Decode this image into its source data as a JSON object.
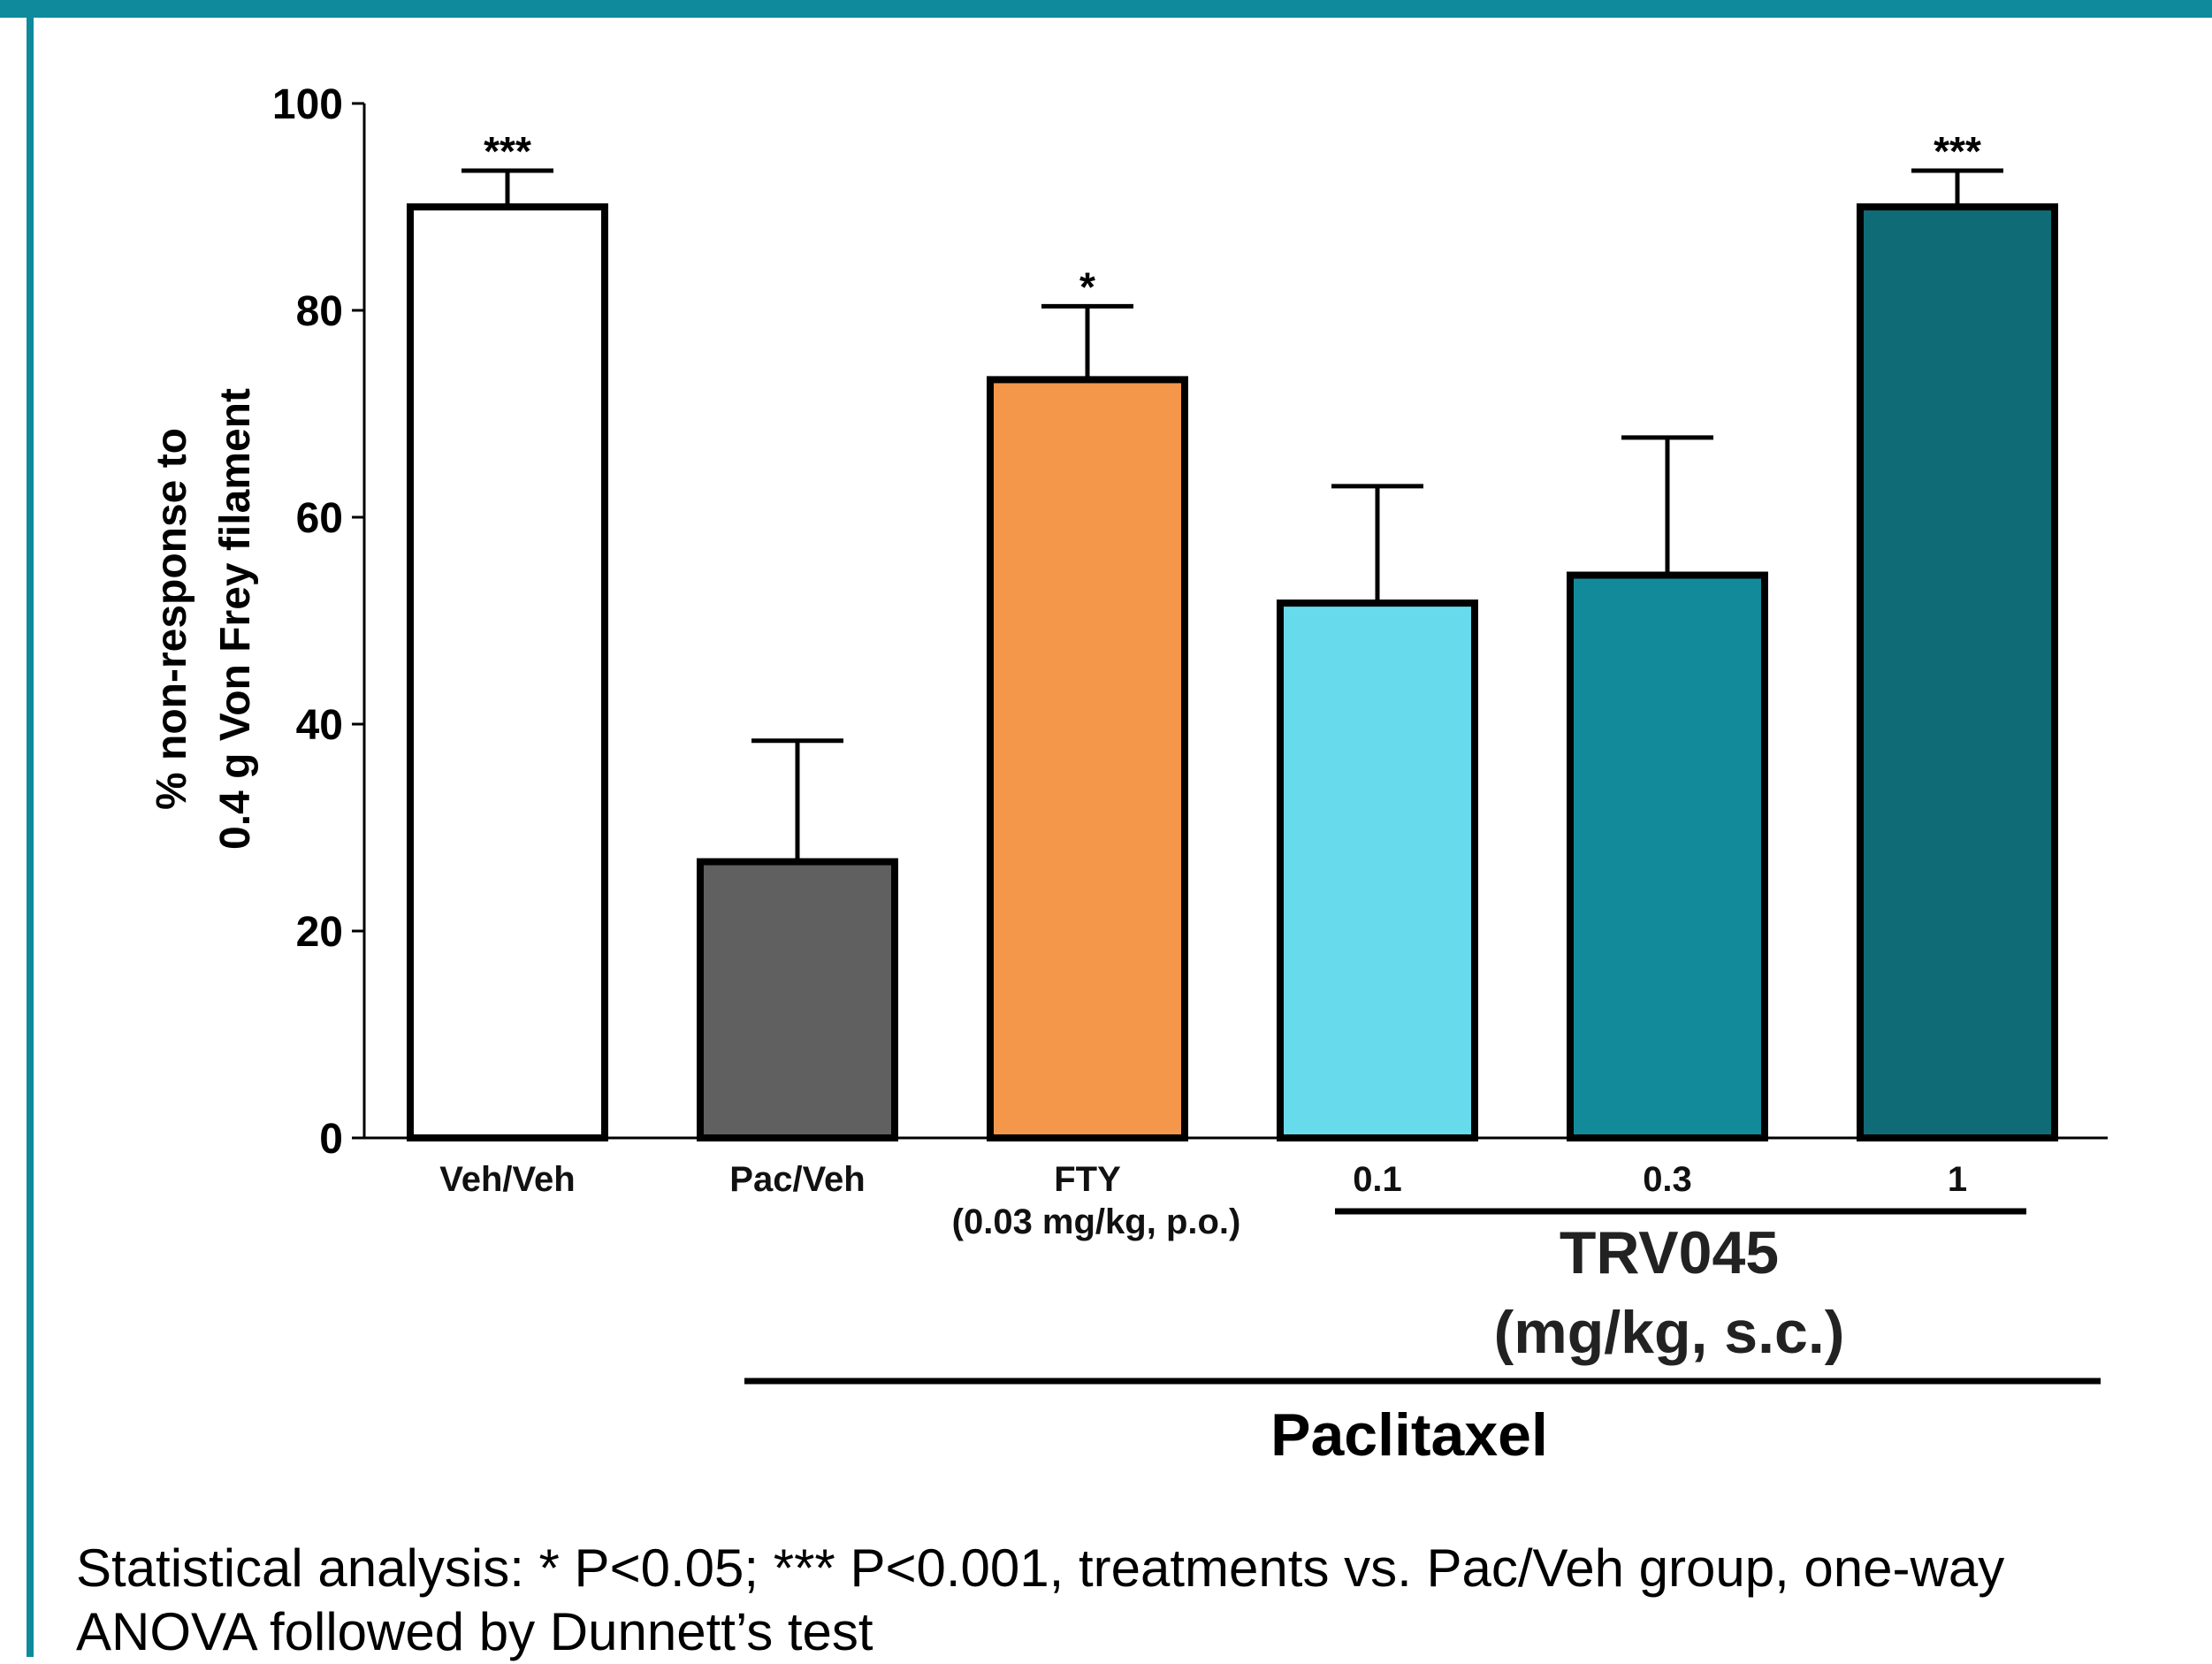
{
  "chart_data": {
    "type": "bar",
    "ylabel_line1": "% non-response to",
    "ylabel_line2": "0.4 g Von Frey filament",
    "ylim": [
      0,
      100
    ],
    "yticks": [
      0,
      20,
      40,
      60,
      80,
      100
    ],
    "categories": [
      "Veh/Veh",
      "Pac/Veh",
      "FTY",
      "0.1",
      "0.3",
      "1"
    ],
    "category_sublabels": [
      "",
      "",
      "(0.03 mg/kg, p.o.)",
      "",
      "",
      ""
    ],
    "values": [
      90,
      26.7,
      73.3,
      51.7,
      54.4,
      90
    ],
    "errors": [
      3.5,
      11.7,
      7.1,
      11.3,
      13.3,
      3.5
    ],
    "significance": [
      "***",
      "",
      "*",
      "",
      "",
      "***"
    ],
    "colors": [
      "#ffffff",
      "#606060",
      "#f5974a",
      "#67dbec",
      "#138a9a",
      "#0f6b76"
    ],
    "group_labels": {
      "trv045_line1": "TRV045",
      "trv045_line2": "(mg/kg, s.c.)",
      "paclitaxel": "Paclitaxel"
    }
  },
  "footnote": {
    "line1": "Statistical analysis: * P<0.05; *** P<0.001, treatments vs. Pac/Veh group, one-way",
    "line2": "ANOVA followed by Dunnett’s test"
  }
}
